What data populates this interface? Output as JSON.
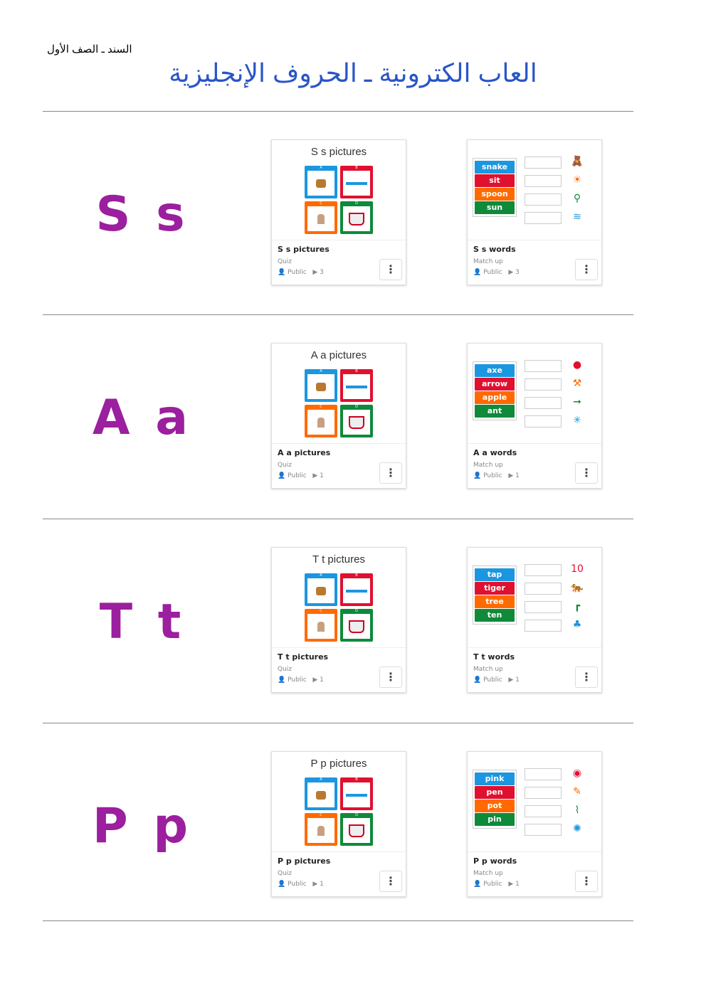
{
  "header": {
    "subtitle": "السند ـ الصف الأول",
    "title": "العاب الكترونية ـ الحروف الإنجليزية"
  },
  "colors": {
    "blue": "#1b96e0",
    "red": "#e0102f",
    "orange": "#ff6a00",
    "green": "#0e8a3a",
    "letter": "#9b1f9e"
  },
  "tile_letters": [
    "A",
    "B",
    "C",
    "D"
  ],
  "rows": [
    {
      "letter": "S s",
      "quiz": {
        "cover": "S s pictures",
        "name": "S s pictures",
        "type": "Quiz",
        "visibility": "Public",
        "plays": "3"
      },
      "match": {
        "name": "S s words",
        "type": "Match up",
        "visibility": "Public",
        "plays": "3",
        "words": [
          "snake",
          "sit",
          "spoon",
          "sun"
        ],
        "pics": [
          "🧸",
          "☀",
          "⚲",
          "≋"
        ]
      }
    },
    {
      "letter": "A a",
      "quiz": {
        "cover": "A a pictures",
        "name": "A a pictures",
        "type": "Quiz",
        "visibility": "Public",
        "plays": "1"
      },
      "match": {
        "name": "A a words",
        "type": "Match up",
        "visibility": "Public",
        "plays": "1",
        "words": [
          "axe",
          "arrow",
          "apple",
          "ant"
        ],
        "pics": [
          "●",
          "⚒",
          "➞",
          "✳"
        ]
      }
    },
    {
      "letter": "T t",
      "quiz": {
        "cover": "T t pictures",
        "name": "T t pictures",
        "type": "Quiz",
        "visibility": "Public",
        "plays": "1"
      },
      "match": {
        "name": "T t words",
        "type": "Match up",
        "visibility": "Public",
        "plays": "1",
        "words": [
          "tap",
          "tiger",
          "tree",
          "ten"
        ],
        "pics": [
          "10",
          "🐅",
          "┏",
          "♣"
        ]
      }
    },
    {
      "letter": "P p",
      "quiz": {
        "cover": "P p pictures",
        "name": "P p pictures",
        "type": "Quiz",
        "visibility": "Public",
        "plays": "1"
      },
      "match": {
        "name": "P p words",
        "type": "Match up",
        "visibility": "Public",
        "plays": "1",
        "words": [
          "pink",
          "pen",
          "pot",
          "pin"
        ],
        "pics": [
          "◉",
          "✎",
          "⌇",
          "✺"
        ]
      }
    }
  ]
}
